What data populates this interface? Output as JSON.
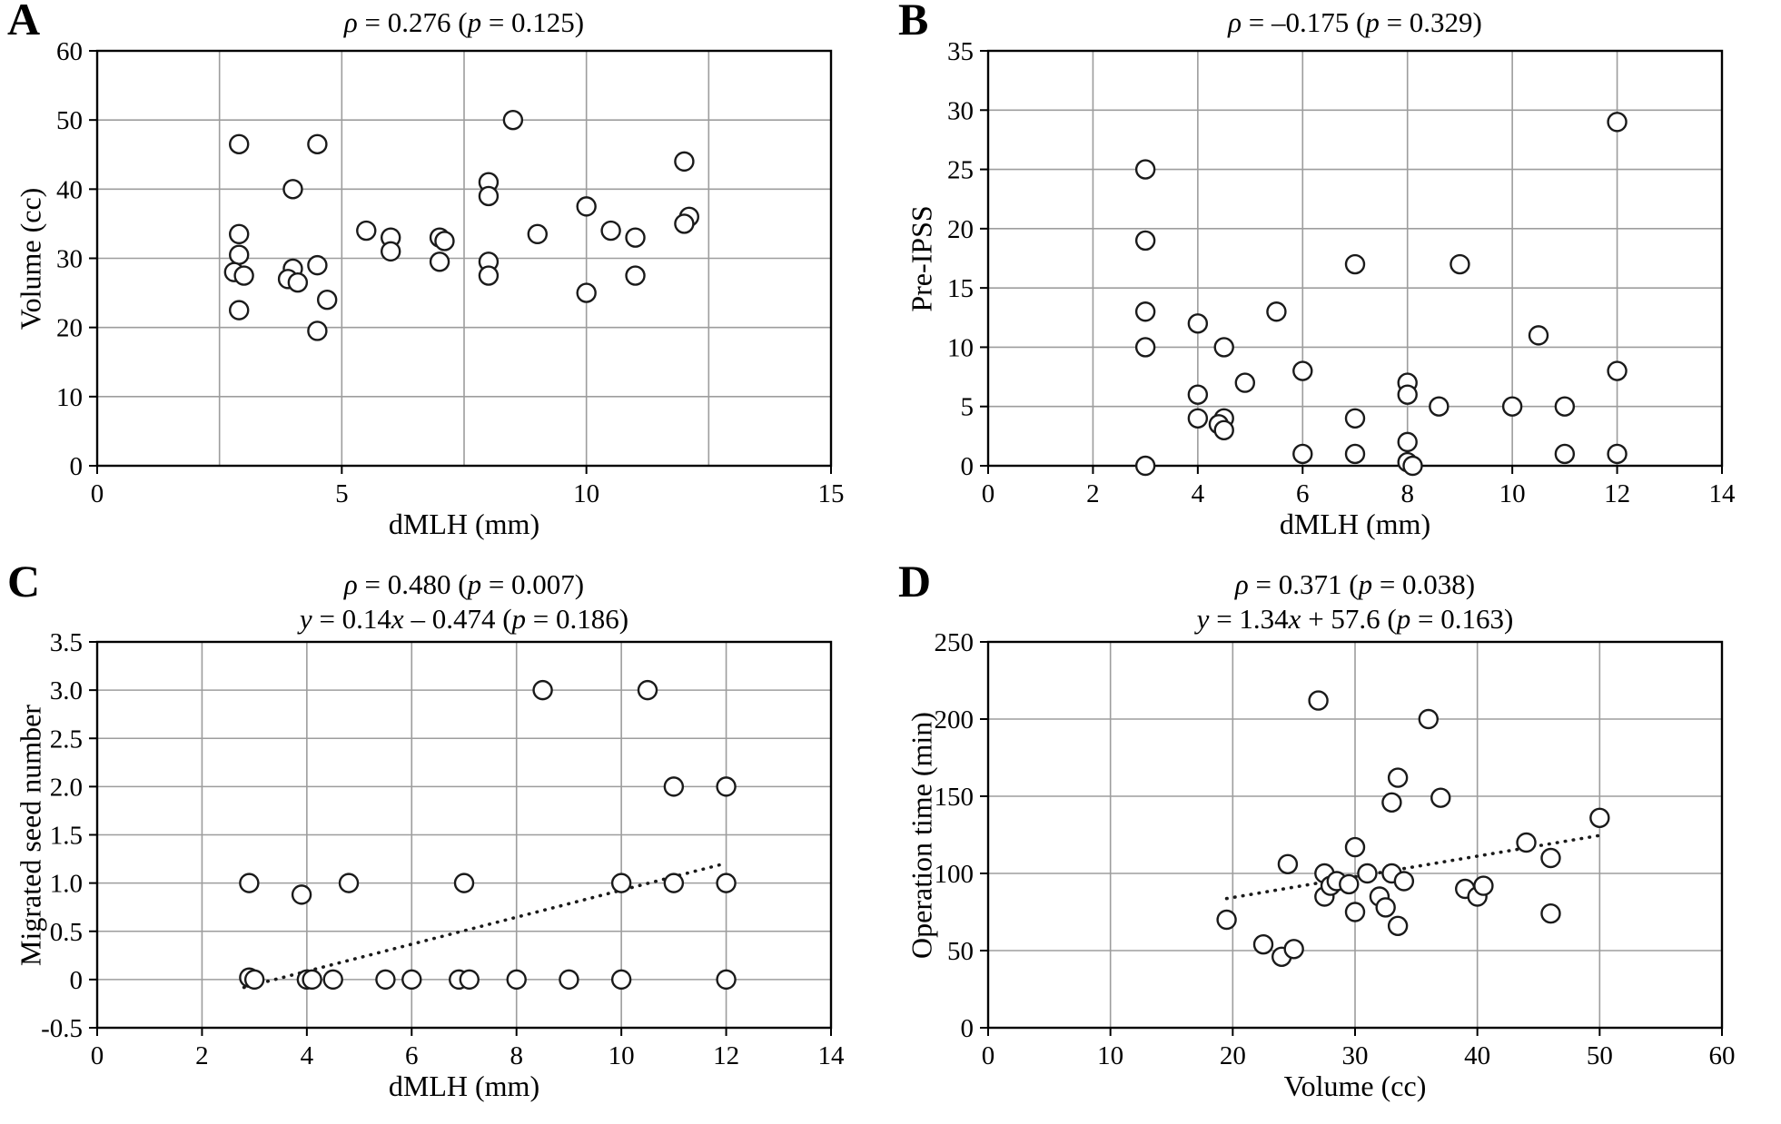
{
  "colors": {
    "background": "#ffffff",
    "grid": "#9d9d9d",
    "axis": "#000000",
    "marker_fill": "#ffffff",
    "marker_stroke": "#1a1a1a",
    "trend": "#1a1a1a",
    "text": "#000000"
  },
  "chart_data": [
    {
      "type": "scatter",
      "panel_label": "A",
      "title_lines": [
        "ρ = 0.276 (p = 0.125)"
      ],
      "xlabel": "dMLH (mm)",
      "ylabel": "Volume (cc)",
      "xlim": [
        0,
        15
      ],
      "ylim": [
        0,
        60
      ],
      "xticks": [
        0,
        5,
        10,
        15
      ],
      "xtick_labels": [
        "0",
        "5",
        "10",
        "15"
      ],
      "yticks": [
        0,
        10,
        20,
        30,
        40,
        50,
        60
      ],
      "ytick_labels": [
        "0",
        "10",
        "20",
        "30",
        "40",
        "50",
        "60"
      ],
      "xgrid_step": 2.5,
      "ygrid_step": 10,
      "grid": true,
      "legend": "none",
      "trendline": null,
      "points": [
        [
          2.9,
          46.5
        ],
        [
          2.9,
          33.5
        ],
        [
          2.9,
          30.5
        ],
        [
          2.8,
          28
        ],
        [
          3.0,
          27.5
        ],
        [
          2.9,
          22.5
        ],
        [
          4.0,
          40
        ],
        [
          4.0,
          28.5
        ],
        [
          3.9,
          27
        ],
        [
          4.1,
          26.5
        ],
        [
          4.5,
          46.5
        ],
        [
          4.5,
          29
        ],
        [
          4.5,
          19.5
        ],
        [
          4.7,
          24
        ],
        [
          5.5,
          34
        ],
        [
          6.0,
          33
        ],
        [
          6.0,
          31
        ],
        [
          7.0,
          33
        ],
        [
          7.1,
          32.5
        ],
        [
          7.0,
          29.5
        ],
        [
          8.0,
          41
        ],
        [
          8.0,
          39
        ],
        [
          8.0,
          29.5
        ],
        [
          8.0,
          27.5
        ],
        [
          8.5,
          50
        ],
        [
          9.0,
          33.5
        ],
        [
          10.0,
          37.5
        ],
        [
          10.0,
          25
        ],
        [
          10.5,
          34
        ],
        [
          11.0,
          33
        ],
        [
          11.0,
          27.5
        ],
        [
          12.0,
          44
        ],
        [
          12.1,
          36
        ],
        [
          12.0,
          35
        ]
      ]
    },
    {
      "type": "scatter",
      "panel_label": "B",
      "title_lines": [
        "ρ = –0.175 (p = 0.329)"
      ],
      "xlabel": "dMLH (mm)",
      "ylabel": "Pre-IPSS",
      "xlim": [
        0,
        14
      ],
      "ylim": [
        0,
        35
      ],
      "xticks": [
        0,
        2,
        4,
        6,
        8,
        10,
        12,
        14
      ],
      "xtick_labels": [
        "0",
        "2",
        "4",
        "6",
        "8",
        "10",
        "12",
        "14"
      ],
      "yticks": [
        0,
        5,
        10,
        15,
        20,
        25,
        30,
        35
      ],
      "ytick_labels": [
        "0",
        "5",
        "10",
        "15",
        "20",
        "25",
        "30",
        "35"
      ],
      "xgrid_step": 2,
      "ygrid_step": 5,
      "grid": true,
      "legend": "none",
      "trendline": null,
      "points": [
        [
          3.0,
          25
        ],
        [
          3.0,
          19
        ],
        [
          3.0,
          13
        ],
        [
          3.0,
          10
        ],
        [
          3.0,
          0
        ],
        [
          4.0,
          12
        ],
        [
          4.0,
          6
        ],
        [
          4.0,
          4
        ],
        [
          4.5,
          10
        ],
        [
          4.5,
          4
        ],
        [
          4.4,
          3.5
        ],
        [
          4.5,
          3
        ],
        [
          4.9,
          7
        ],
        [
          5.5,
          13
        ],
        [
          6.0,
          8
        ],
        [
          6.0,
          1
        ],
        [
          7.0,
          17
        ],
        [
          7.0,
          4
        ],
        [
          7.0,
          1
        ],
        [
          8.0,
          7
        ],
        [
          8.0,
          6
        ],
        [
          8.0,
          2
        ],
        [
          8.0,
          0.3
        ],
        [
          8.1,
          0
        ],
        [
          8.6,
          5
        ],
        [
          9.0,
          17
        ],
        [
          10.0,
          5
        ],
        [
          10.5,
          11
        ],
        [
          11.0,
          5
        ],
        [
          11.0,
          1
        ],
        [
          12.0,
          29
        ],
        [
          12.0,
          8
        ],
        [
          12.0,
          1
        ]
      ]
    },
    {
      "type": "scatter",
      "panel_label": "C",
      "title_lines": [
        "ρ = 0.480 (p = 0.007)",
        "y = 0.14x – 0.474 (p = 0.186)"
      ],
      "xlabel": "dMLH (mm)",
      "ylabel": "Migrated seed number",
      "xlim": [
        0,
        14
      ],
      "ylim": [
        -0.5,
        3.5
      ],
      "xticks": [
        0,
        2,
        4,
        6,
        8,
        10,
        12,
        14
      ],
      "xtick_labels": [
        "0",
        "2",
        "4",
        "6",
        "8",
        "10",
        "12",
        "14"
      ],
      "yticks": [
        -0.5,
        0,
        0.5,
        1.0,
        1.5,
        2.0,
        2.5,
        3.0,
        3.5
      ],
      "ytick_labels": [
        "-0.5",
        "0",
        "0.5",
        "1.0",
        "1.5",
        "2.0",
        "2.5",
        "3.0",
        "3.5"
      ],
      "xgrid_step": 2,
      "ygrid_step": 0.5,
      "grid": true,
      "legend": "none",
      "trendline": {
        "slope": 0.14,
        "intercept": -0.474,
        "x_start": 2.8,
        "x_end": 12,
        "style": "dotted"
      },
      "points": [
        [
          2.9,
          1
        ],
        [
          2.9,
          0.02
        ],
        [
          3.0,
          0
        ],
        [
          3.9,
          0.88
        ],
        [
          4.0,
          0
        ],
        [
          4.1,
          0
        ],
        [
          4.5,
          0
        ],
        [
          4.8,
          1
        ],
        [
          5.5,
          0
        ],
        [
          6.0,
          0
        ],
        [
          7.0,
          1
        ],
        [
          6.9,
          0
        ],
        [
          7.1,
          0
        ],
        [
          8.0,
          0
        ],
        [
          8.5,
          3
        ],
        [
          9.0,
          0
        ],
        [
          10.0,
          1
        ],
        [
          10.0,
          0
        ],
        [
          10.5,
          3
        ],
        [
          11.0,
          2
        ],
        [
          11.0,
          1
        ],
        [
          12.0,
          2
        ],
        [
          12.0,
          1
        ],
        [
          12.0,
          0
        ]
      ]
    },
    {
      "type": "scatter",
      "panel_label": "D",
      "title_lines": [
        "ρ = 0.371 (p = 0.038)",
        "y = 1.34x + 57.6 (p = 0.163)"
      ],
      "xlabel": "Volume (cc)",
      "ylabel": "Operation time (min)",
      "xlim": [
        0,
        60
      ],
      "ylim": [
        0,
        250
      ],
      "xticks": [
        0,
        10,
        20,
        30,
        40,
        50,
        60
      ],
      "xtick_labels": [
        "0",
        "10",
        "20",
        "30",
        "40",
        "50",
        "60"
      ],
      "yticks": [
        0,
        50,
        100,
        150,
        200,
        250
      ],
      "ytick_labels": [
        "0",
        "50",
        "100",
        "150",
        "200",
        "250"
      ],
      "xgrid_step": 10,
      "ygrid_step": 50,
      "grid": true,
      "legend": "none",
      "trendline": {
        "slope": 1.34,
        "intercept": 57.6,
        "x_start": 19.5,
        "x_end": 50,
        "style": "dotted"
      },
      "points": [
        [
          19.5,
          70
        ],
        [
          22.5,
          54
        ],
        [
          24.0,
          46
        ],
        [
          24.5,
          106
        ],
        [
          25.0,
          51
        ],
        [
          27.0,
          212
        ],
        [
          27.5,
          100
        ],
        [
          27.5,
          85
        ],
        [
          28.0,
          92
        ],
        [
          28.5,
          95
        ],
        [
          29.5,
          93
        ],
        [
          30.0,
          117
        ],
        [
          30.0,
          75
        ],
        [
          31.0,
          100
        ],
        [
          32.0,
          85
        ],
        [
          32.5,
          78
        ],
        [
          33.0,
          146
        ],
        [
          33.0,
          100
        ],
        [
          33.5,
          162
        ],
        [
          33.5,
          66
        ],
        [
          34.0,
          95
        ],
        [
          36.0,
          200
        ],
        [
          37.0,
          149
        ],
        [
          39.0,
          90
        ],
        [
          40.0,
          85
        ],
        [
          40.5,
          92
        ],
        [
          44.0,
          120
        ],
        [
          46.0,
          110
        ],
        [
          46.0,
          74
        ],
        [
          50.0,
          136
        ]
      ]
    }
  ]
}
